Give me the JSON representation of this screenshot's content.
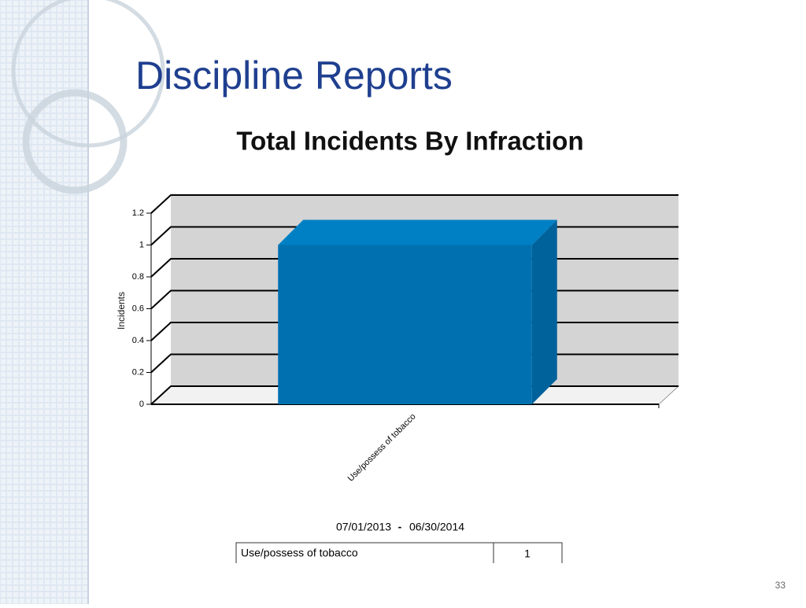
{
  "slide": {
    "title": "Discipline Reports",
    "page_number": "33"
  },
  "chart_data": {
    "type": "bar3d",
    "title": "Total Incidents By Infraction",
    "y_label": "Incidents",
    "categories": [
      "Use/possess of tobacco"
    ],
    "values": [
      1
    ],
    "color": "#0070b0",
    "ylim": [
      0,
      1.2
    ],
    "yticks": [
      0,
      0.2,
      0.4,
      0.6,
      0.8,
      1,
      1.2
    ],
    "grid": true
  },
  "date_range": {
    "start": "07/01/2013",
    "separator": "-",
    "end": "06/30/2014"
  },
  "table": {
    "rows": [
      [
        "Use/possess of tobacco",
        "1"
      ]
    ]
  }
}
